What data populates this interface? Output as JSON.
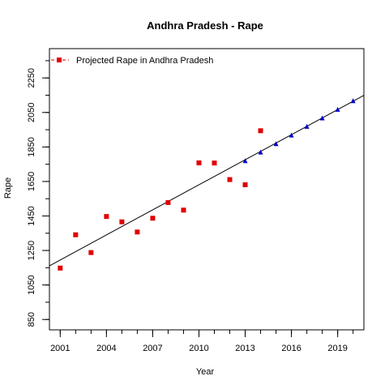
{
  "chart_data": {
    "type": "scatter",
    "title": "Andhra Pradesh  -  Rape",
    "xlabel": "Year",
    "ylabel": "Rape",
    "xlim": [
      2000.3,
      2020.7
    ],
    "ylim": [
      790,
      2420
    ],
    "x_ticks": [
      2001,
      2004,
      2007,
      2010,
      2013,
      2016,
      2019
    ],
    "x_minor_ticks": [
      2001,
      2002,
      2003,
      2004,
      2005,
      2006,
      2007,
      2008,
      2009,
      2010,
      2011,
      2012,
      2013,
      2014,
      2015,
      2016,
      2017,
      2018,
      2019,
      2020
    ],
    "y_ticks": [
      850,
      1050,
      1250,
      1450,
      1650,
      1850,
      2050,
      2250
    ],
    "y_minor_ticks": [
      850,
      950,
      1050,
      1150,
      1250,
      1350,
      1450,
      1550,
      1650,
      1750,
      1850,
      1950,
      2050,
      2150,
      2250,
      2350
    ],
    "legend": {
      "position": "top-left",
      "entries": [
        {
          "label": "Projected  Rape  in  Andhra Pradesh",
          "color": "#e00000",
          "marker": "square"
        }
      ]
    },
    "series": [
      {
        "marker": "square",
        "color": "#e00000",
        "x": [
          2001,
          2002,
          2003,
          2004,
          2005,
          2006,
          2007,
          2008,
          2009,
          2010,
          2011,
          2012,
          2013,
          2014
        ],
        "y": [
          1148,
          1341,
          1238,
          1447,
          1416,
          1357,
          1437,
          1528,
          1484,
          1758,
          1757,
          1661,
          1631,
          1944
        ]
      },
      {
        "marker": "triangle",
        "color": "#0000cc",
        "x": [
          2013,
          2014,
          2015,
          2016,
          2017,
          2018,
          2019,
          2020
        ],
        "y": [
          1768,
          1818,
          1867,
          1917,
          1967,
          2016,
          2066,
          2116
        ]
      }
    ],
    "trend_line": {
      "color": "#000000",
      "x": [
        2000.3,
        2020.7
      ],
      "y": [
        1161,
        2149
      ]
    },
    "grid": false
  }
}
